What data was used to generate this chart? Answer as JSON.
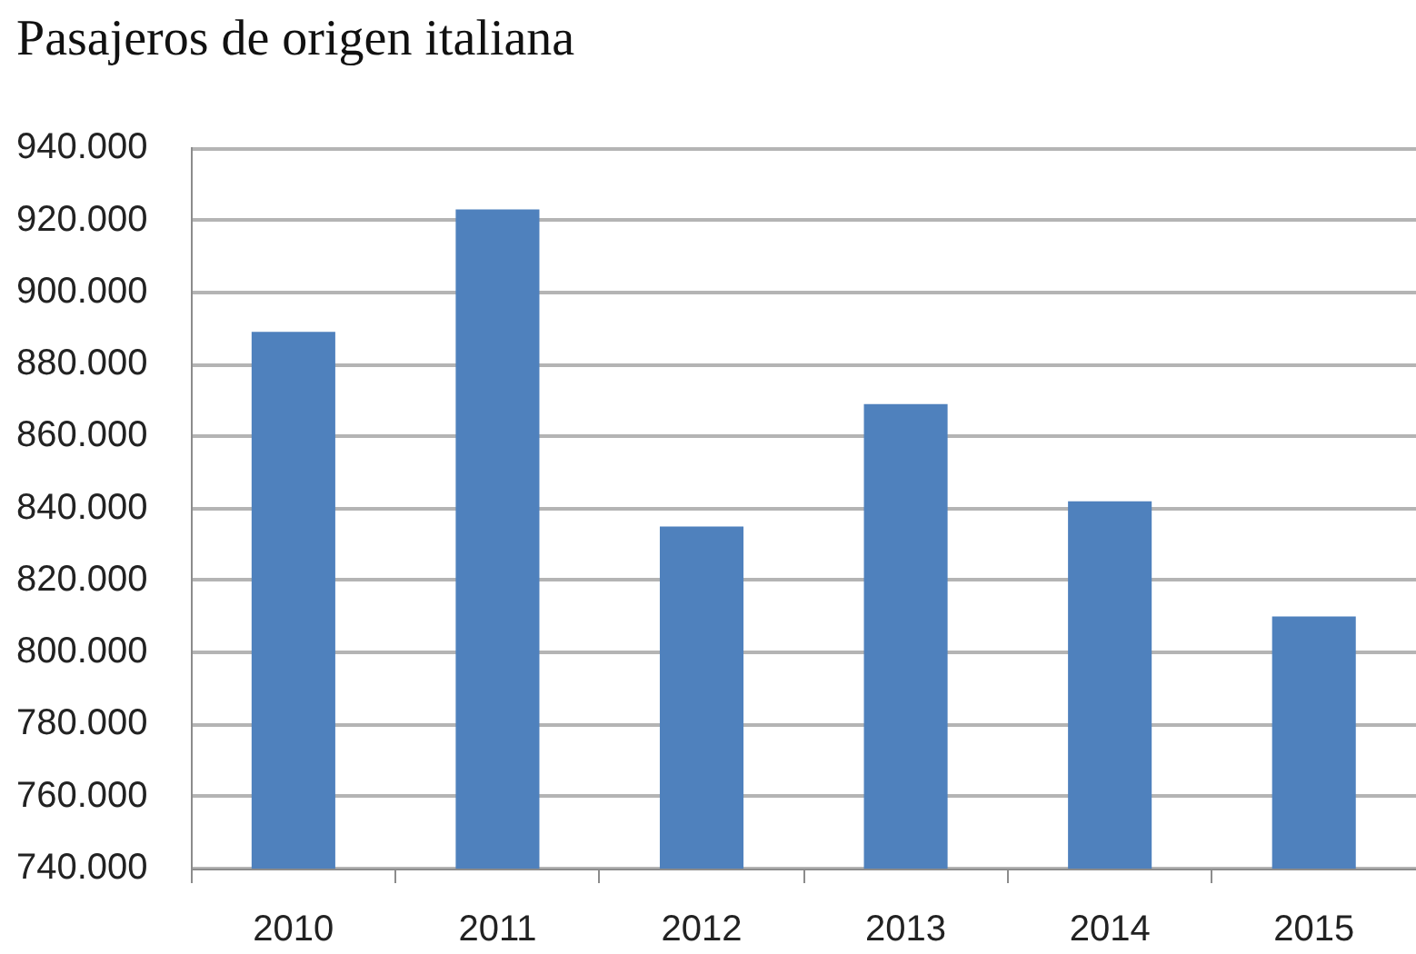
{
  "chart_data": {
    "type": "bar",
    "title": "Pasajeros de origen italiana",
    "categories": [
      "2010",
      "2011",
      "2012",
      "2013",
      "2014",
      "2015"
    ],
    "values": [
      889000,
      923000,
      835000,
      869000,
      842000,
      810000
    ],
    "color": "#4f81bd",
    "ylim": [
      740000,
      940000
    ],
    "yticks": [
      {
        "value": 740000,
        "label": "740.000"
      },
      {
        "value": 760000,
        "label": "760.000"
      },
      {
        "value": 780000,
        "label": "780.000"
      },
      {
        "value": 800000,
        "label": "800.000"
      },
      {
        "value": 820000,
        "label": "820.000"
      },
      {
        "value": 840000,
        "label": "840.000"
      },
      {
        "value": 860000,
        "label": "860.000"
      },
      {
        "value": 880000,
        "label": "880.000"
      },
      {
        "value": 900000,
        "label": "900.000"
      },
      {
        "value": 920000,
        "label": "920.000"
      },
      {
        "value": 940000,
        "label": "940.000"
      }
    ],
    "grid": "y"
  }
}
